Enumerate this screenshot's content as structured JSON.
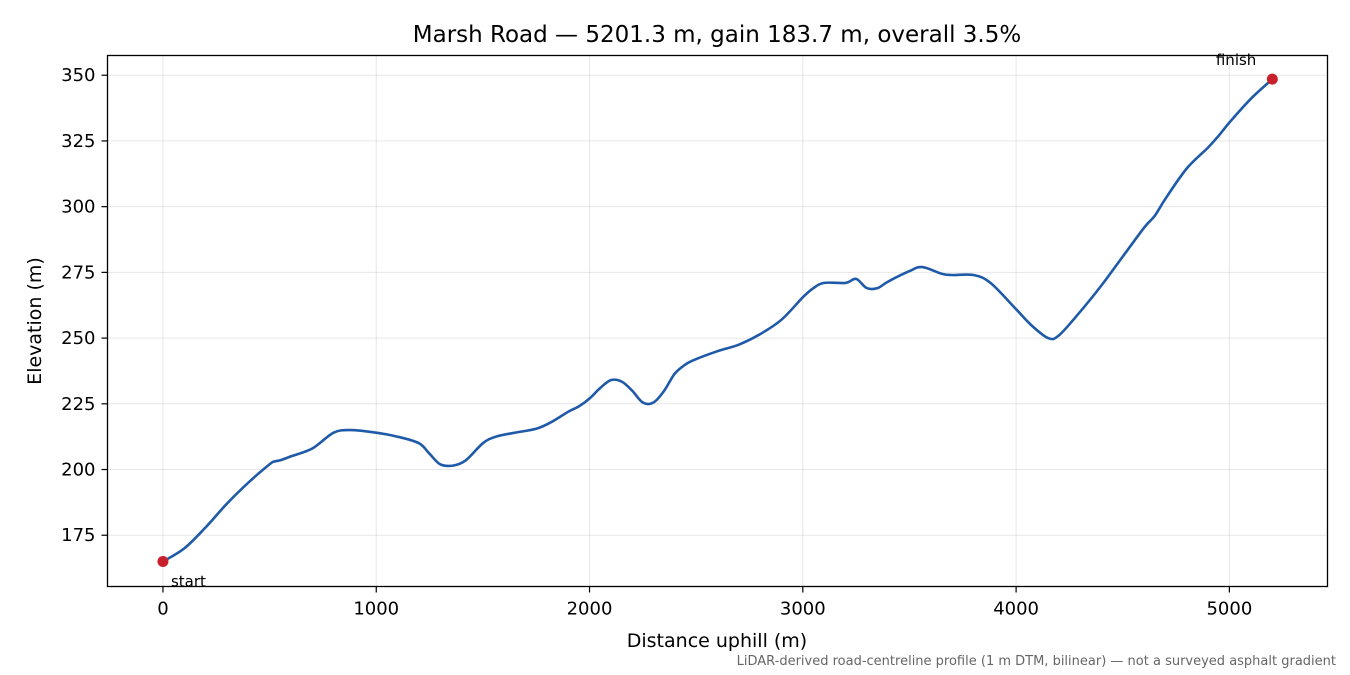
{
  "chart_data": {
    "type": "line",
    "title": "Marsh Road — 5201.3 m, gain 183.7 m, overall 3.5%",
    "xlabel": "Distance uphill (m)",
    "ylabel": "Elevation (m)",
    "xlim": [
      -260,
      5460
    ],
    "ylim": [
      155.5,
      357.5
    ],
    "xticks": [
      0,
      1000,
      2000,
      3000,
      4000,
      5000
    ],
    "yticks": [
      175,
      200,
      225,
      250,
      275,
      300,
      325,
      350
    ],
    "grid": true,
    "colors": {
      "line": "#1f5aa8",
      "marker": "#c8202a",
      "grid": "#b0b0b0",
      "footnote": "#666666"
    },
    "series": [
      {
        "x": [
          0,
          100,
          200,
          300,
          400,
          500,
          520,
          550,
          600,
          700,
          800,
          880,
          1000,
          1100,
          1200,
          1250,
          1300,
          1360,
          1420,
          1500,
          1560,
          1650,
          1750,
          1820,
          1900,
          1950,
          2000,
          2050,
          2100,
          2150,
          2200,
          2250,
          2300,
          2350,
          2400,
          2450,
          2500,
          2600,
          2700,
          2800,
          2900,
          3000,
          3050,
          3100,
          3200,
          3250,
          3300,
          3350,
          3400,
          3500,
          3560,
          3650,
          3700,
          3800,
          3880,
          4000,
          4070,
          4150,
          4200,
          4300,
          4400,
          4500,
          4600,
          4650,
          4700,
          4800,
          4900,
          4950,
          5000,
          5100,
          5201.3
        ],
        "y": [
          165,
          170,
          178,
          187,
          195,
          202,
          203,
          203.5,
          205,
          208,
          214,
          215,
          214,
          212.5,
          210,
          206,
          202,
          201.5,
          203.5,
          210,
          212.5,
          214,
          215.5,
          218,
          222,
          224,
          227,
          231,
          234,
          233.5,
          230,
          225.5,
          225.5,
          230,
          236.5,
          240,
          242,
          245,
          247.5,
          251.5,
          257,
          265.5,
          269,
          271,
          271,
          272.5,
          269,
          269,
          271.5,
          275.5,
          277,
          274.5,
          274,
          274,
          271,
          261,
          255,
          250,
          251,
          260,
          270,
          281,
          292,
          296.5,
          303,
          314.5,
          322.5,
          327,
          332,
          341,
          348.5
        ]
      }
    ],
    "markers": [
      {
        "x": 0,
        "y": 165,
        "label": "start"
      },
      {
        "x": 5201.3,
        "y": 348.5,
        "label": "finish"
      }
    ],
    "footnote": "LiDAR-derived road-centreline profile (1 m DTM, bilinear) — not a surveyed asphalt gradient"
  }
}
